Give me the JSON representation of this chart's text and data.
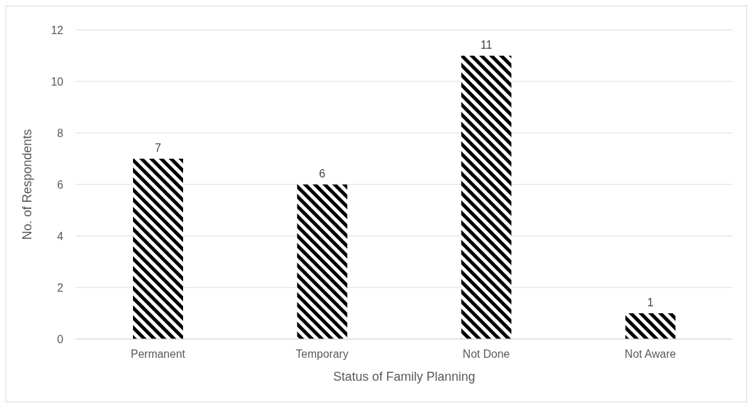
{
  "chart_data": {
    "type": "bar",
    "xlabel": "Status of Family Planning",
    "ylabel": "No. of Respondents",
    "categories": [
      "Permanent",
      "Temporary",
      "Not Done",
      "Not Aware"
    ],
    "values": [
      7,
      6,
      11,
      1
    ],
    "color": "#000000",
    "ylim": [
      0,
      12
    ],
    "yticks": [
      0,
      2,
      4,
      6,
      8,
      10,
      12
    ],
    "grid": "y",
    "data_labels": true
  }
}
